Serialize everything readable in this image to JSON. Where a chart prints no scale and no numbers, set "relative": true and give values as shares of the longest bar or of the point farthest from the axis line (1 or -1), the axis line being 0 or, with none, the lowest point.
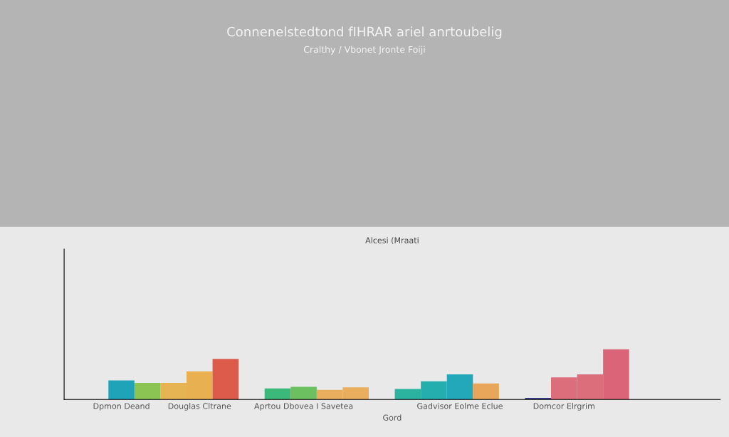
{
  "chart_data": {
    "type": "bar",
    "title": "Alcesi (Mraati",
    "xlabel": "Gord",
    "annotations": [
      "Connenelstedtond fIHRAR ariel anrtoubelig",
      "Cralthy / Vbonet Jronte Foiji"
    ],
    "relative": true,
    "categories": [
      "Dpmon Deand",
      null,
      null,
      "Douglas Cltrane",
      null,
      null,
      null,
      "Aprtou Dbovea I Savetea",
      null,
      null,
      null,
      null,
      null,
      "Gadvisor Eolme Eclue",
      null,
      null,
      null,
      "Domcor Elrgrim",
      null,
      null
    ],
    "values": [
      0.38,
      0.33,
      0.33,
      0.56,
      0.81,
      null,
      0.22,
      0.25,
      0.19,
      0.24,
      null,
      0.21,
      0.36,
      0.5,
      0.32,
      null,
      0.03,
      0.44,
      0.5,
      1
    ],
    "colors": [
      "#1fa3b8",
      "#8cc453",
      "#e7b453",
      "#e8b050",
      "#dd5b4b",
      "#ffffff",
      "#3cb87a",
      "#6cc060",
      "#e9ae5e",
      "#e9ae5e",
      "#ffffff",
      "#2bb3a0",
      "#24aeae",
      "#22a8b8",
      "#e8a65a",
      "#ffffff",
      "#3a3a8a",
      "#dc6e7c",
      "#dc6e7c",
      "#dc6478"
    ],
    "grid": false,
    "legend": false
  }
}
